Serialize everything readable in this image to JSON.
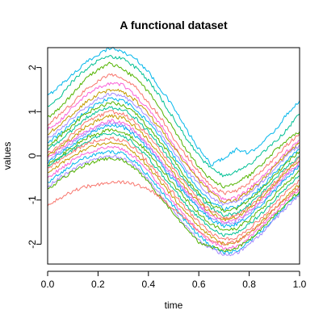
{
  "chart_data": {
    "type": "line",
    "title": "A functional dataset",
    "xlabel": "time",
    "ylabel": "values",
    "xlim": [
      0.0,
      1.0
    ],
    "ylim": [
      -2.45,
      2.45
    ],
    "xticks": [
      0.0,
      0.2,
      0.4,
      0.6,
      0.8,
      1.0
    ],
    "xtick_labels": [
      "0.0",
      "0.2",
      "0.4",
      "0.6",
      "0.8",
      "1.0"
    ],
    "yticks": [
      -2,
      -1,
      0,
      1,
      2
    ],
    "ytick_labels": [
      "-2",
      "-1",
      "0",
      "1",
      "2"
    ],
    "grid": false,
    "legend": "none",
    "palette": [
      "#F8766D",
      "#C49A00",
      "#53B400",
      "#00C094",
      "#00B6EB",
      "#A58AFF",
      "#FB61D7"
    ],
    "x": [
      0.0,
      0.05,
      0.1,
      0.15,
      0.2,
      0.25,
      0.3,
      0.35,
      0.4,
      0.45,
      0.5,
      0.55,
      0.6,
      0.65,
      0.7,
      0.75,
      0.8,
      0.85,
      0.9,
      0.95,
      1.0
    ],
    "series": [
      {
        "color": "#00B6EB",
        "values": [
          1.35,
          1.6,
          1.85,
          2.1,
          2.3,
          2.45,
          2.35,
          2.2,
          1.9,
          1.5,
          1.1,
          0.6,
          0.15,
          -0.2,
          -0.05,
          0.15,
          0.05,
          0.3,
          0.55,
          0.95,
          1.25
        ]
      },
      {
        "color": "#00C094",
        "values": [
          1.1,
          1.35,
          1.7,
          1.95,
          2.15,
          2.25,
          2.2,
          2.0,
          1.7,
          1.3,
          0.85,
          0.4,
          0.0,
          -0.3,
          -0.45,
          -0.35,
          -0.2,
          0.05,
          0.3,
          0.6,
          0.95
        ]
      },
      {
        "color": "#53B400",
        "values": [
          0.85,
          1.1,
          1.4,
          1.75,
          1.95,
          2.1,
          1.95,
          1.75,
          1.45,
          1.05,
          0.6,
          0.15,
          -0.25,
          -0.55,
          -0.7,
          -0.6,
          -0.45,
          -0.2,
          0.1,
          0.35,
          0.55
        ]
      },
      {
        "color": "#F8766D",
        "values": [
          0.7,
          0.95,
          1.2,
          1.5,
          1.7,
          1.85,
          1.75,
          1.55,
          1.2,
          0.85,
          0.4,
          0.0,
          -0.35,
          -0.7,
          -0.85,
          -0.8,
          -0.6,
          -0.35,
          -0.05,
          0.25,
          0.5
        ]
      },
      {
        "color": "#FB61D7",
        "values": [
          0.6,
          0.8,
          1.1,
          1.35,
          1.55,
          1.65,
          1.6,
          1.35,
          1.05,
          0.7,
          0.25,
          -0.15,
          -0.5,
          -0.8,
          -1.0,
          -0.95,
          -0.75,
          -0.5,
          -0.2,
          0.1,
          0.35
        ]
      },
      {
        "color": "#C49A00",
        "values": [
          0.5,
          0.7,
          0.95,
          1.2,
          1.4,
          1.5,
          1.45,
          1.25,
          0.95,
          0.6,
          0.2,
          -0.2,
          -0.55,
          -0.85,
          -1.05,
          -1.0,
          -0.8,
          -0.55,
          -0.25,
          0.05,
          0.3
        ]
      },
      {
        "color": "#A58AFF",
        "values": [
          0.4,
          0.6,
          0.85,
          1.1,
          1.3,
          1.4,
          1.35,
          1.15,
          0.85,
          0.5,
          0.1,
          -0.3,
          -0.65,
          -0.95,
          -1.1,
          -1.05,
          -0.85,
          -0.6,
          -0.3,
          0.0,
          0.25
        ]
      },
      {
        "color": "#00B6EB",
        "values": [
          0.3,
          0.5,
          0.75,
          1.0,
          1.2,
          1.3,
          1.25,
          1.05,
          0.75,
          0.4,
          0.0,
          -0.4,
          -0.75,
          -1.05,
          -1.2,
          -1.15,
          -0.95,
          -0.7,
          -0.4,
          -0.1,
          0.15
        ]
      },
      {
        "color": "#53B400",
        "values": [
          0.2,
          0.45,
          0.7,
          0.95,
          1.1,
          1.2,
          1.15,
          0.95,
          0.65,
          0.3,
          -0.1,
          -0.5,
          -0.85,
          -1.1,
          -1.25,
          -1.2,
          -1.0,
          -0.75,
          -0.45,
          -0.15,
          0.1
        ]
      },
      {
        "color": "#00C094",
        "values": [
          0.15,
          0.35,
          0.6,
          0.85,
          1.0,
          1.1,
          1.05,
          0.85,
          0.55,
          0.2,
          -0.2,
          -0.6,
          -0.9,
          -1.2,
          -1.35,
          -1.3,
          -1.1,
          -0.85,
          -0.55,
          -0.25,
          0.0
        ]
      },
      {
        "color": "#F8766D",
        "values": [
          0.05,
          0.25,
          0.5,
          0.75,
          0.9,
          1.0,
          0.95,
          0.75,
          0.45,
          0.1,
          -0.3,
          -0.65,
          -1.0,
          -1.25,
          -1.4,
          -1.35,
          -1.15,
          -0.9,
          -0.6,
          -0.3,
          -0.05
        ]
      },
      {
        "color": "#C49A00",
        "values": [
          0.0,
          0.2,
          0.4,
          0.65,
          0.8,
          0.9,
          0.85,
          0.65,
          0.35,
          0.0,
          -0.4,
          -0.75,
          -1.05,
          -1.3,
          -1.45,
          -1.4,
          -1.2,
          -0.95,
          -0.65,
          -0.35,
          -0.1
        ]
      },
      {
        "color": "#FB61D7",
        "values": [
          -0.05,
          0.15,
          0.35,
          0.55,
          0.7,
          0.8,
          0.75,
          0.55,
          0.25,
          -0.1,
          -0.45,
          -0.8,
          -1.1,
          -1.35,
          -1.5,
          -1.45,
          -1.25,
          -1.0,
          -0.7,
          -0.4,
          -0.15
        ]
      },
      {
        "color": "#A58AFF",
        "values": [
          -0.1,
          0.1,
          0.3,
          0.5,
          0.65,
          0.75,
          0.7,
          0.5,
          0.2,
          -0.15,
          -0.5,
          -0.85,
          -1.15,
          -1.4,
          -1.55,
          -1.5,
          -1.3,
          -1.05,
          -0.75,
          -0.45,
          -0.2
        ]
      },
      {
        "color": "#00B6EB",
        "values": [
          -0.15,
          0.05,
          0.25,
          0.45,
          0.6,
          0.7,
          0.65,
          0.45,
          0.15,
          -0.2,
          -0.55,
          -0.9,
          -1.2,
          -1.45,
          -1.6,
          -1.55,
          -1.35,
          -1.1,
          -0.8,
          -0.5,
          -0.25
        ]
      },
      {
        "color": "#53B400",
        "values": [
          -0.2,
          0.0,
          0.2,
          0.4,
          0.5,
          0.6,
          0.55,
          0.35,
          0.05,
          -0.3,
          -0.65,
          -1.0,
          -1.3,
          -1.55,
          -1.7,
          -1.65,
          -1.45,
          -1.2,
          -0.9,
          -0.6,
          -0.35
        ]
      },
      {
        "color": "#00C094",
        "values": [
          -0.25,
          -0.05,
          0.15,
          0.3,
          0.45,
          0.5,
          0.45,
          0.25,
          -0.05,
          -0.4,
          -0.75,
          -1.1,
          -1.4,
          -1.65,
          -1.8,
          -1.75,
          -1.55,
          -1.3,
          -1.0,
          -0.7,
          -0.45
        ]
      },
      {
        "color": "#F8766D",
        "values": [
          -0.3,
          -0.1,
          0.1,
          0.25,
          0.35,
          0.4,
          0.35,
          0.15,
          -0.15,
          -0.5,
          -0.85,
          -1.2,
          -1.5,
          -1.75,
          -1.9,
          -1.85,
          -1.65,
          -1.4,
          -1.1,
          -0.8,
          -0.55
        ]
      },
      {
        "color": "#C49A00",
        "values": [
          -0.4,
          -0.2,
          0.0,
          0.15,
          0.25,
          0.3,
          0.25,
          0.05,
          -0.25,
          -0.6,
          -0.95,
          -1.3,
          -1.6,
          -1.85,
          -2.0,
          -1.95,
          -1.75,
          -1.5,
          -1.2,
          -0.9,
          -0.65
        ]
      },
      {
        "color": "#FB61D7",
        "values": [
          -0.5,
          -0.3,
          -0.1,
          0.05,
          0.15,
          0.2,
          0.15,
          -0.05,
          -0.35,
          -0.7,
          -1.05,
          -1.4,
          -1.7,
          -1.95,
          -2.1,
          -2.05,
          -1.85,
          -1.6,
          -1.3,
          -1.0,
          -0.75
        ]
      },
      {
        "color": "#00B6EB",
        "values": [
          -0.6,
          -0.4,
          -0.2,
          -0.05,
          0.05,
          0.1,
          0.05,
          -0.15,
          -0.45,
          -0.8,
          -1.15,
          -1.5,
          -1.8,
          -2.05,
          -2.2,
          -2.15,
          -1.95,
          -1.7,
          -1.4,
          -1.1,
          -0.85
        ]
      },
      {
        "color": "#A58AFF",
        "values": [
          -0.7,
          -0.5,
          -0.3,
          -0.15,
          -0.05,
          0.0,
          -0.05,
          -0.25,
          -0.55,
          -0.9,
          -1.25,
          -1.6,
          -1.9,
          -2.1,
          -2.25,
          -2.2,
          -2.0,
          -1.75,
          -1.45,
          -1.15,
          -0.9
        ]
      },
      {
        "color": "#53B400",
        "values": [
          -0.75,
          -0.55,
          -0.35,
          -0.2,
          -0.1,
          -0.05,
          -0.1,
          -0.3,
          -0.6,
          -0.95,
          -1.3,
          -1.65,
          -1.95,
          -2.05,
          -2.15,
          -2.1,
          -1.9,
          -1.65,
          -1.35,
          -1.05,
          -0.8
        ]
      },
      {
        "color": "#F8766D",
        "values": [
          -1.1,
          -0.95,
          -0.8,
          -0.7,
          -0.65,
          -0.6,
          -0.6,
          -0.65,
          -0.75,
          -0.95,
          -1.2,
          -1.45,
          -1.7,
          -1.9,
          -2.0,
          -1.95,
          -1.75,
          -1.5,
          -1.2,
          -0.95,
          -0.7
        ]
      }
    ]
  }
}
